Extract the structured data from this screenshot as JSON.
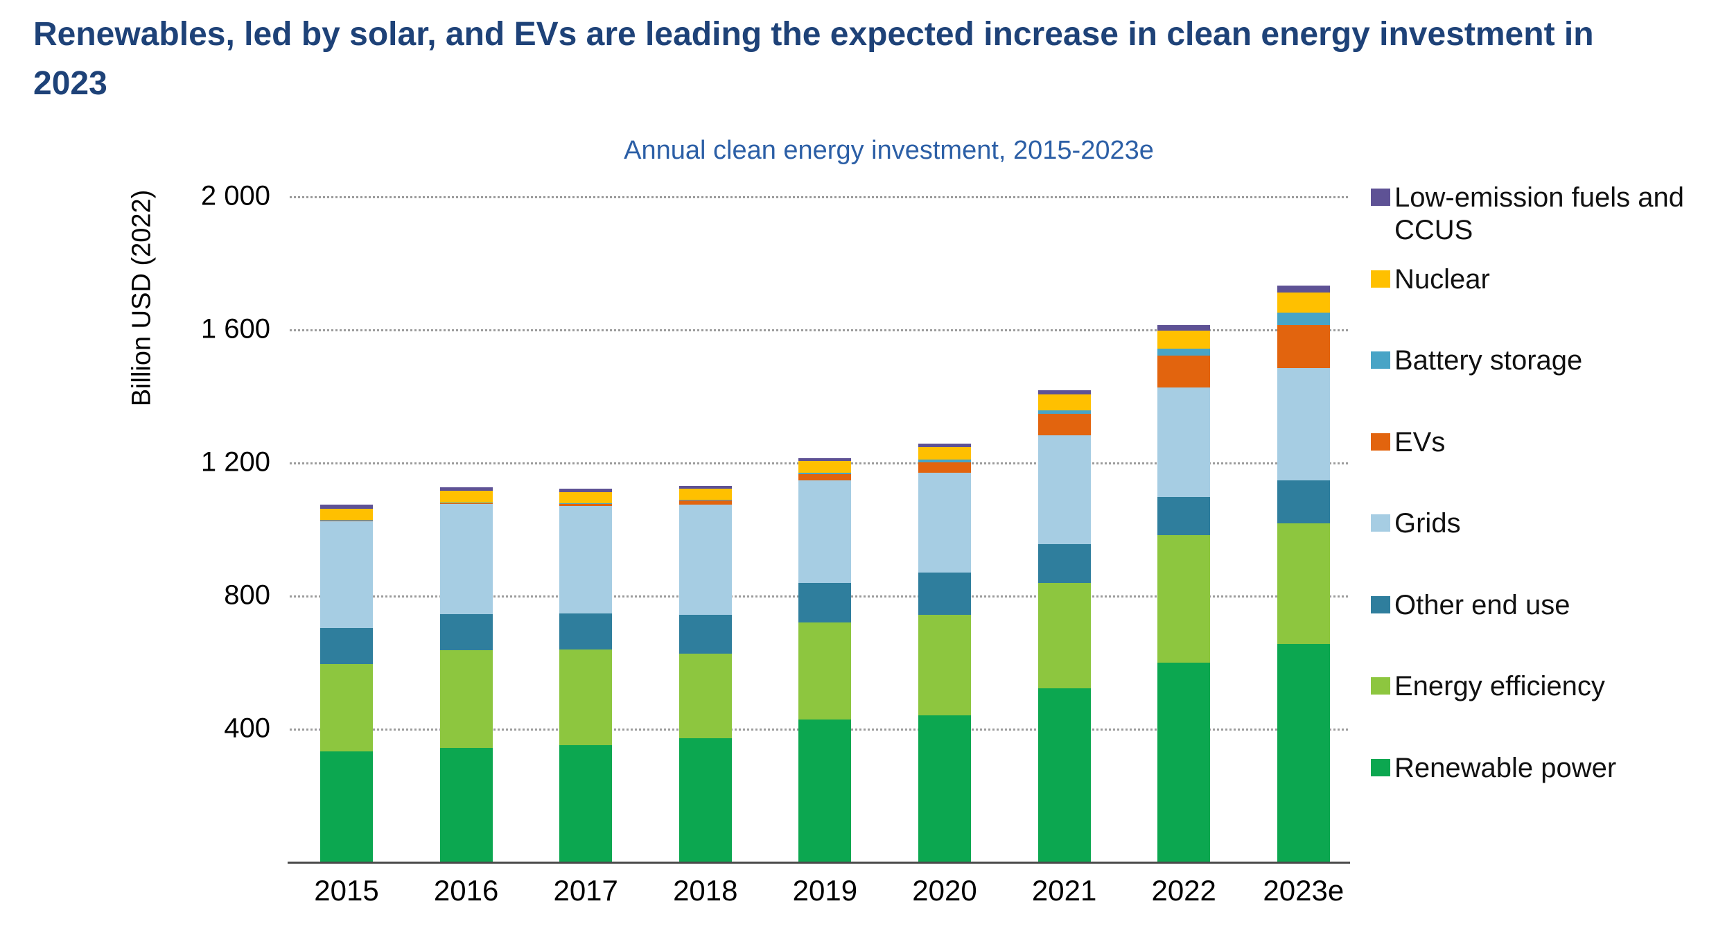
{
  "heading": "Renewables, led by solar, and EVs are leading the expected increase in clean energy investment in 2023",
  "chart_data": {
    "type": "bar",
    "stacked": true,
    "title": "Annual clean energy investment, 2015-2023e",
    "ylabel": "Billion USD (2022)",
    "xlabel": "",
    "categories": [
      "2015",
      "2016",
      "2017",
      "2018",
      "2019",
      "2020",
      "2021",
      "2022",
      "2023e"
    ],
    "series": [
      {
        "name": "Renewable power",
        "color": "#0CA750",
        "values": [
          331,
          341,
          350,
          370,
          428,
          440,
          520,
          598,
          655
        ]
      },
      {
        "name": "Energy efficiency",
        "color": "#8DC63F",
        "values": [
          262,
          295,
          288,
          255,
          290,
          302,
          318,
          383,
          362
        ]
      },
      {
        "name": "Other end use",
        "color": "#2F7E9D",
        "values": [
          110,
          108,
          108,
          117,
          119,
          126,
          117,
          115,
          129
        ]
      },
      {
        "name": "Grids",
        "color": "#A6CDE3",
        "values": [
          321,
          332,
          322,
          330,
          308,
          300,
          327,
          330,
          338
        ]
      },
      {
        "name": "EVs",
        "color": "#E2640E",
        "values": [
          2,
          3,
          8,
          13,
          19,
          33,
          63,
          94,
          129
        ]
      },
      {
        "name": "Battery storage",
        "color": "#48A4C6",
        "values": [
          1,
          1,
          2,
          3,
          4,
          8,
          11,
          21,
          37
        ]
      },
      {
        "name": "Nuclear",
        "color": "#FFC000",
        "values": [
          34,
          34,
          33,
          33,
          36,
          37,
          48,
          54,
          60
        ]
      },
      {
        "name": "Low-emission fuels and CCUS",
        "color": "#5E5295",
        "values": [
          11,
          11,
          9,
          9,
          9,
          11,
          12,
          17,
          22
        ]
      }
    ],
    "approx_totals": [
      1072,
      1125,
      1120,
      1130,
      1213,
      1257,
      1416,
      1612,
      1732
    ],
    "ylim": [
      0,
      2000
    ],
    "yticks": [
      {
        "value": 2000,
        "label": "2 000"
      },
      {
        "value": 1600,
        "label": "1 600"
      },
      {
        "value": 1200,
        "label": "1 200"
      },
      {
        "value": 800,
        "label": "800"
      },
      {
        "value": 400,
        "label": "400"
      }
    ],
    "grid": "horizontal-dotted",
    "legend_position": "right",
    "legend_order_top_to_bottom": [
      "Low-emission fuels and CCUS",
      "Nuclear",
      "Battery storage",
      "EVs",
      "Grids",
      "Other end use",
      "Energy efficiency",
      "Renewable power"
    ]
  },
  "colors": {
    "heading_text": "#1E4278",
    "chart_title_text": "#2C5FA6",
    "axis_text": "#000000",
    "gridline": "#9B9B9B",
    "axis_line": "#4A4A4A",
    "background": "#FFFFFF"
  }
}
